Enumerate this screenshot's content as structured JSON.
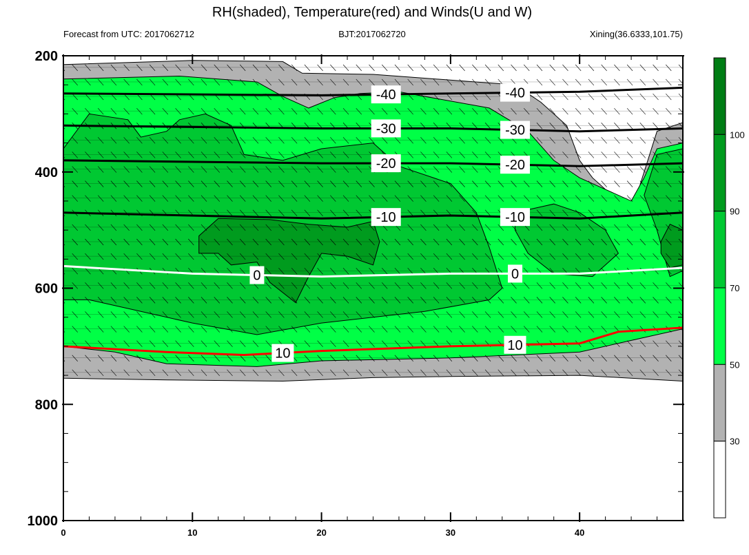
{
  "chart_data": {
    "type": "contour",
    "title": "RH(shaded), Temperature(red) and Winds(U and W)",
    "subtitles": {
      "left": "Forecast from UTC: 2017062712",
      "center": "BJT:2017062720",
      "right": "Xining(36.6333,101.75)"
    },
    "x": {
      "range": [
        0,
        48
      ],
      "ticks": [
        0,
        10,
        20,
        30,
        40
      ],
      "tick_labels": [
        "0",
        "10",
        "20",
        "30",
        "40"
      ]
    },
    "y": {
      "range": [
        200,
        1000
      ],
      "reversed": true,
      "ticks": [
        200,
        400,
        600,
        800,
        1000
      ],
      "tick_labels": [
        "200",
        "400",
        "600",
        "800",
        "1000"
      ]
    },
    "colorbar": {
      "levels": [
        30,
        50,
        70,
        90,
        100
      ],
      "level_labels": [
        "30",
        "50",
        "70",
        "90",
        "100"
      ],
      "colors": [
        "#ffffff",
        "#b2b2b2",
        "#00ff46",
        "#00c832",
        "#009b1e",
        "#007d14"
      ]
    },
    "rh_regions": [
      {
        "level": 30,
        "color": "#b2b2b2",
        "points": [
          [
            0,
            215
          ],
          [
            10,
            208
          ],
          [
            17,
            210
          ],
          [
            18.5,
            230
          ],
          [
            24,
            232
          ],
          [
            35,
            250
          ],
          [
            37,
            280
          ],
          [
            39,
            320
          ],
          [
            40,
            380
          ],
          [
            41,
            410
          ],
          [
            44,
            470
          ],
          [
            46,
            330
          ],
          [
            48,
            315
          ],
          [
            48,
            760
          ],
          [
            40,
            750
          ],
          [
            30,
            752
          ],
          [
            24,
            754
          ],
          [
            17,
            760
          ],
          [
            8,
            758
          ],
          [
            0,
            755
          ]
        ]
      },
      {
        "level": 50,
        "color": "#00ff46",
        "points": [
          [
            0,
            240
          ],
          [
            9,
            235
          ],
          [
            15,
            245
          ],
          [
            17,
            270
          ],
          [
            19,
            290
          ],
          [
            21,
            272
          ],
          [
            23,
            265
          ],
          [
            26,
            262
          ],
          [
            33,
            290
          ],
          [
            36,
            330
          ],
          [
            38,
            380
          ],
          [
            40,
            410
          ],
          [
            42,
            430
          ],
          [
            44,
            450
          ],
          [
            45,
            410
          ],
          [
            46,
            360
          ],
          [
            48,
            350
          ],
          [
            48,
            670
          ],
          [
            44,
            690
          ],
          [
            40,
            710
          ],
          [
            30,
            720
          ],
          [
            20,
            725
          ],
          [
            15,
            735
          ],
          [
            8,
            730
          ],
          [
            4,
            710
          ],
          [
            0,
            700
          ]
        ]
      },
      {
        "level": 70,
        "color": "#00c832",
        "points": [
          [
            0,
            360
          ],
          [
            2,
            300
          ],
          [
            5,
            310
          ],
          [
            6,
            340
          ],
          [
            8,
            330
          ],
          [
            9,
            310
          ],
          [
            11,
            300
          ],
          [
            13,
            320
          ],
          [
            14,
            370
          ],
          [
            17,
            380
          ],
          [
            20,
            360
          ],
          [
            24,
            350
          ],
          [
            26,
            390
          ],
          [
            30,
            420
          ],
          [
            32,
            470
          ],
          [
            33,
            530
          ],
          [
            34,
            600
          ],
          [
            33,
            620
          ],
          [
            28,
            640
          ],
          [
            20,
            660
          ],
          [
            15,
            680
          ],
          [
            10,
            660
          ],
          [
            6,
            640
          ],
          [
            2,
            620
          ],
          [
            0,
            620
          ]
        ]
      },
      {
        "level": 70,
        "color": "#00c832",
        "points": [
          [
            35,
            470
          ],
          [
            38,
            455
          ],
          [
            40,
            470
          ],
          [
            42,
            500
          ],
          [
            43,
            540
          ],
          [
            41,
            580
          ],
          [
            38,
            575
          ],
          [
            36,
            540
          ],
          [
            35,
            500
          ]
        ]
      },
      {
        "level": 70,
        "color": "#00c832",
        "points": [
          [
            46,
            370
          ],
          [
            48,
            360
          ],
          [
            48,
            570
          ],
          [
            47,
            580
          ],
          [
            46,
            500
          ],
          [
            45,
            440
          ]
        ]
      },
      {
        "level": 90,
        "color": "#009b1e",
        "points": [
          [
            10.5,
            510
          ],
          [
            12,
            480
          ],
          [
            16,
            482
          ],
          [
            19,
            490
          ],
          [
            22,
            495
          ],
          [
            24,
            485
          ],
          [
            24.5,
            520
          ],
          [
            24,
            560
          ],
          [
            22,
            545
          ],
          [
            20,
            540
          ],
          [
            19,
            580
          ],
          [
            18,
            625
          ],
          [
            16,
            590
          ],
          [
            15,
            555
          ],
          [
            13,
            560
          ],
          [
            12,
            540
          ],
          [
            10.5,
            540
          ]
        ]
      },
      {
        "level": 90,
        "color": "#009b1e",
        "points": [
          [
            46.3,
            520
          ],
          [
            47,
            490
          ],
          [
            48,
            500
          ],
          [
            48,
            560
          ],
          [
            47,
            565
          ],
          [
            46.3,
            540
          ]
        ]
      }
    ],
    "contours": [
      {
        "value": 0,
        "color": "#ffffff",
        "label": "0",
        "points": [
          [
            0,
            562
          ],
          [
            10,
            575
          ],
          [
            20,
            580
          ],
          [
            30,
            575
          ],
          [
            40,
            575
          ],
          [
            48,
            565
          ]
        ]
      },
      {
        "value": -10,
        "color": "#000000",
        "label": "-10",
        "points": [
          [
            0,
            470
          ],
          [
            20,
            480
          ],
          [
            30,
            475
          ],
          [
            40,
            480
          ],
          [
            48,
            470
          ]
        ]
      },
      {
        "value": -20,
        "color": "#000000",
        "label": "-20",
        "points": [
          [
            0,
            380
          ],
          [
            20,
            385
          ],
          [
            30,
            385
          ],
          [
            40,
            390
          ],
          [
            48,
            385
          ]
        ]
      },
      {
        "value": -30,
        "color": "#000000",
        "label": "-30",
        "points": [
          [
            0,
            320
          ],
          [
            20,
            325
          ],
          [
            30,
            325
          ],
          [
            40,
            330
          ],
          [
            48,
            325
          ]
        ]
      },
      {
        "value": -40,
        "color": "#000000",
        "label": "-40",
        "points": [
          [
            0,
            265
          ],
          [
            20,
            268
          ],
          [
            30,
            265
          ],
          [
            40,
            262
          ],
          [
            48,
            255
          ]
        ]
      },
      {
        "value": 10,
        "color": "#ff0000",
        "label": "10",
        "points": [
          [
            0,
            700
          ],
          [
            8,
            710
          ],
          [
            14,
            715
          ],
          [
            20,
            708
          ],
          [
            30,
            700
          ],
          [
            40,
            695
          ],
          [
            43,
            675
          ],
          [
            48,
            668
          ]
        ]
      }
    ],
    "winds_note": ""
  }
}
